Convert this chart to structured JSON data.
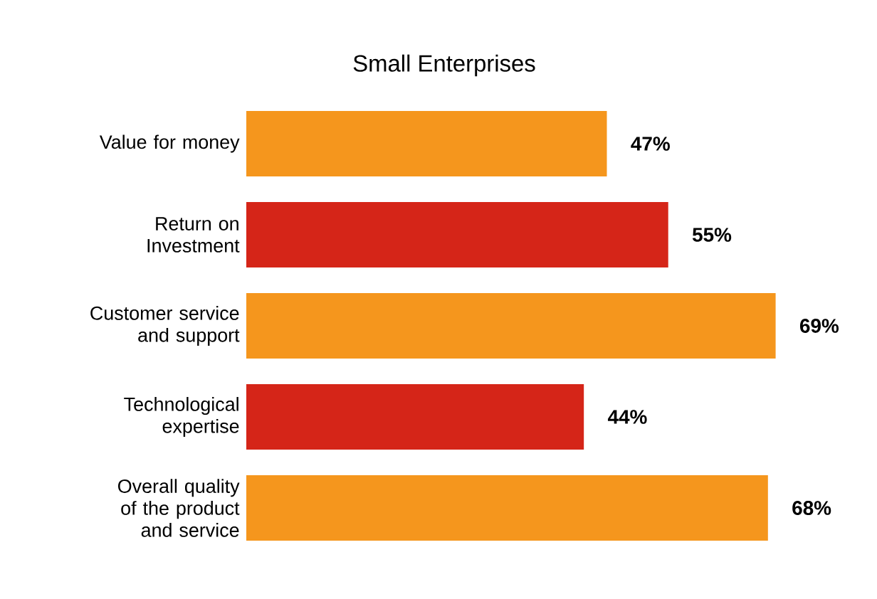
{
  "chart_data": {
    "type": "bar",
    "orientation": "horizontal",
    "title": "Small Enterprises",
    "categories": [
      "Value for money",
      "Return on Investment",
      "Customer service and support",
      "Technological expertise",
      "Overall quality of the product and service"
    ],
    "values": [
      47,
      55,
      69,
      44,
      68
    ],
    "value_labels": [
      "47%",
      "55%",
      "69%",
      "44%",
      "68%"
    ],
    "colors": [
      "#f5961d",
      "#d52518",
      "#f5961d",
      "#d52518",
      "#f5961d"
    ]
  }
}
